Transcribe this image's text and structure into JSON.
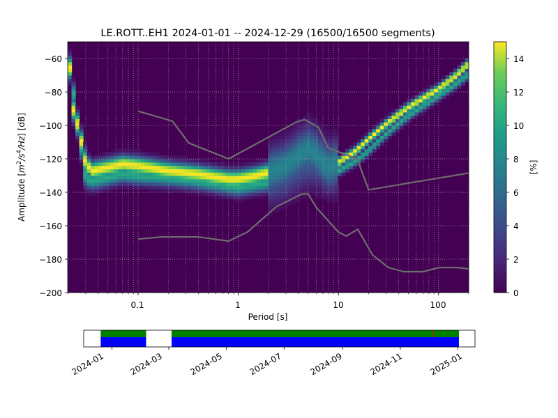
{
  "chart_data": [
    {
      "type": "heatmap",
      "title": "LE.ROTT..EH1   2024-01-01 -- 2024-12-29  (16500/16500 segments)",
      "xlabel": "Period [s]",
      "ylabel_prefix": "Amplitude [",
      "ylabel_math": "m",
      "ylabel_exp1": "2",
      "ylabel_mid": "/s",
      "ylabel_exp2": "4",
      "ylabel_end": "/Hz",
      "ylabel_suffix": "] [dB]",
      "x_scale": "log",
      "xlim": [
        0.0198,
        200
      ],
      "ylim": [
        -200,
        -50
      ],
      "x_ticks": [
        {
          "value": 0.1,
          "label": "0.1"
        },
        {
          "value": 1,
          "label": "1"
        },
        {
          "value": 10,
          "label": "10"
        },
        {
          "value": 100,
          "label": "100"
        }
      ],
      "y_ticks": [
        {
          "value": -60,
          "label": "−60"
        },
        {
          "value": -80,
          "label": "−80"
        },
        {
          "value": -100,
          "label": "−100"
        },
        {
          "value": -120,
          "label": "−120"
        },
        {
          "value": -140,
          "label": "−140"
        },
        {
          "value": -160,
          "label": "−160"
        },
        {
          "value": -180,
          "label": "−180"
        },
        {
          "value": -200,
          "label": "−200"
        }
      ],
      "grid": "dotted",
      "colormap": "viridis",
      "colorbar": {
        "label": "[%]",
        "range": [
          0,
          15
        ],
        "ticks": [
          {
            "value": 0,
            "label": "0"
          },
          {
            "value": 2,
            "label": "2"
          },
          {
            "value": 4,
            "label": "4"
          },
          {
            "value": 6,
            "label": "6"
          },
          {
            "value": 8,
            "label": "8"
          },
          {
            "value": 10,
            "label": "10"
          },
          {
            "value": 12,
            "label": "12"
          },
          {
            "value": 14,
            "label": "14"
          }
        ]
      },
      "mode_curves": [
        {
          "name": "upper",
          "points": [
            [
              0.02,
              -55
            ],
            [
              0.021,
              -70
            ],
            [
              0.022,
              -88
            ],
            [
              0.025,
              -100
            ],
            [
              0.03,
              -123
            ],
            [
              0.035,
              -127
            ],
            [
              0.05,
              -125
            ],
            [
              0.07,
              -123
            ],
            [
              0.1,
              -124
            ],
            [
              0.2,
              -127
            ],
            [
              0.4,
              -129
            ],
            [
              0.8,
              -132
            ],
            [
              1,
              -132
            ],
            [
              1.5,
              -130
            ],
            [
              2,
              -128
            ],
            [
              3,
              -124
            ],
            [
              4,
              -118
            ],
            [
              5,
              -114
            ],
            [
              6,
              -117
            ],
            [
              7,
              -122
            ],
            [
              8,
              -125
            ],
            [
              10,
              -122
            ],
            [
              15,
              -115
            ],
            [
              20,
              -108
            ],
            [
              30,
              -99
            ],
            [
              50,
              -89
            ],
            [
              100,
              -78
            ],
            [
              150,
              -70
            ],
            [
              190,
              -64
            ]
          ],
          "peak": 15
        },
        {
          "name": "lower",
          "points": [
            [
              0.02,
              -58
            ],
            [
              0.025,
              -100
            ],
            [
              0.03,
              -132
            ],
            [
              0.035,
              -133
            ],
            [
              0.05,
              -131
            ],
            [
              0.07,
              -129
            ],
            [
              0.1,
              -130
            ],
            [
              0.2,
              -131
            ],
            [
              0.4,
              -133
            ],
            [
              0.8,
              -136
            ],
            [
              1,
              -137
            ],
            [
              1.5,
              -135
            ],
            [
              2,
              -134
            ],
            [
              3,
              -130
            ],
            [
              5,
              -122
            ],
            [
              7,
              -124
            ],
            [
              8,
              -126
            ],
            [
              10,
              -127
            ],
            [
              15,
              -121
            ],
            [
              20,
              -115
            ],
            [
              30,
              -105
            ],
            [
              50,
              -94
            ],
            [
              100,
              -82
            ],
            [
              150,
              -75
            ],
            [
              190,
              -70
            ]
          ],
          "peak": 9
        }
      ],
      "noise_models": [
        {
          "name": "high",
          "points": [
            [
              0.1,
              -91.5
            ],
            [
              0.22,
              -97.4
            ],
            [
              0.32,
              -110.5
            ],
            [
              0.8,
              -120
            ],
            [
              3.8,
              -98
            ],
            [
              4.6,
              -96.5
            ],
            [
              6.3,
              -101
            ],
            [
              7.9,
              -113.5
            ],
            [
              15.4,
              -120
            ],
            [
              20,
              -138.5
            ],
            [
              354.8,
              -126
            ]
          ]
        },
        {
          "name": "low",
          "points": [
            [
              0.1,
              -168
            ],
            [
              0.17,
              -166.7
            ],
            [
              0.4,
              -166.7
            ],
            [
              0.8,
              -169.2
            ],
            [
              1.24,
              -163.7
            ],
            [
              2.4,
              -148.6
            ],
            [
              4.3,
              -141.1
            ],
            [
              5,
              -141.1
            ],
            [
              6,
              -149
            ],
            [
              10,
              -163.8
            ],
            [
              12,
              -166.2
            ],
            [
              15.6,
              -162.1
            ],
            [
              21.9,
              -177.5
            ],
            [
              31.6,
              -185
            ],
            [
              45,
              -187.5
            ],
            [
              70,
              -187.5
            ],
            [
              101,
              -185
            ],
            [
              154,
              -185
            ],
            [
              328,
              -187.5
            ]
          ]
        }
      ]
    },
    {
      "type": "timeline",
      "x_range": [
        "2023-12-02",
        "2025-01-19"
      ],
      "coverage_bar_start": "2023-12-20",
      "coverage_bar_end": "2025-01-02",
      "gaps": [
        [
          "2024-02-06",
          "2024-03-04"
        ]
      ],
      "colors": {
        "data": "#0000ff",
        "used": "#008000",
        "gap": "#ffffff",
        "marker": "#ff0000"
      },
      "marker_date": "2024-12-06",
      "ticks": [
        {
          "date": "2024-01-01",
          "label": "2024-01"
        },
        {
          "date": "2024-03-01",
          "label": "2024-03"
        },
        {
          "date": "2024-05-01",
          "label": "2024-05"
        },
        {
          "date": "2024-07-01",
          "label": "2024-07"
        },
        {
          "date": "2024-09-01",
          "label": "2024-09"
        },
        {
          "date": "2024-11-01",
          "label": "2024-11"
        },
        {
          "date": "2025-01-01",
          "label": "2025-01"
        }
      ]
    }
  ]
}
